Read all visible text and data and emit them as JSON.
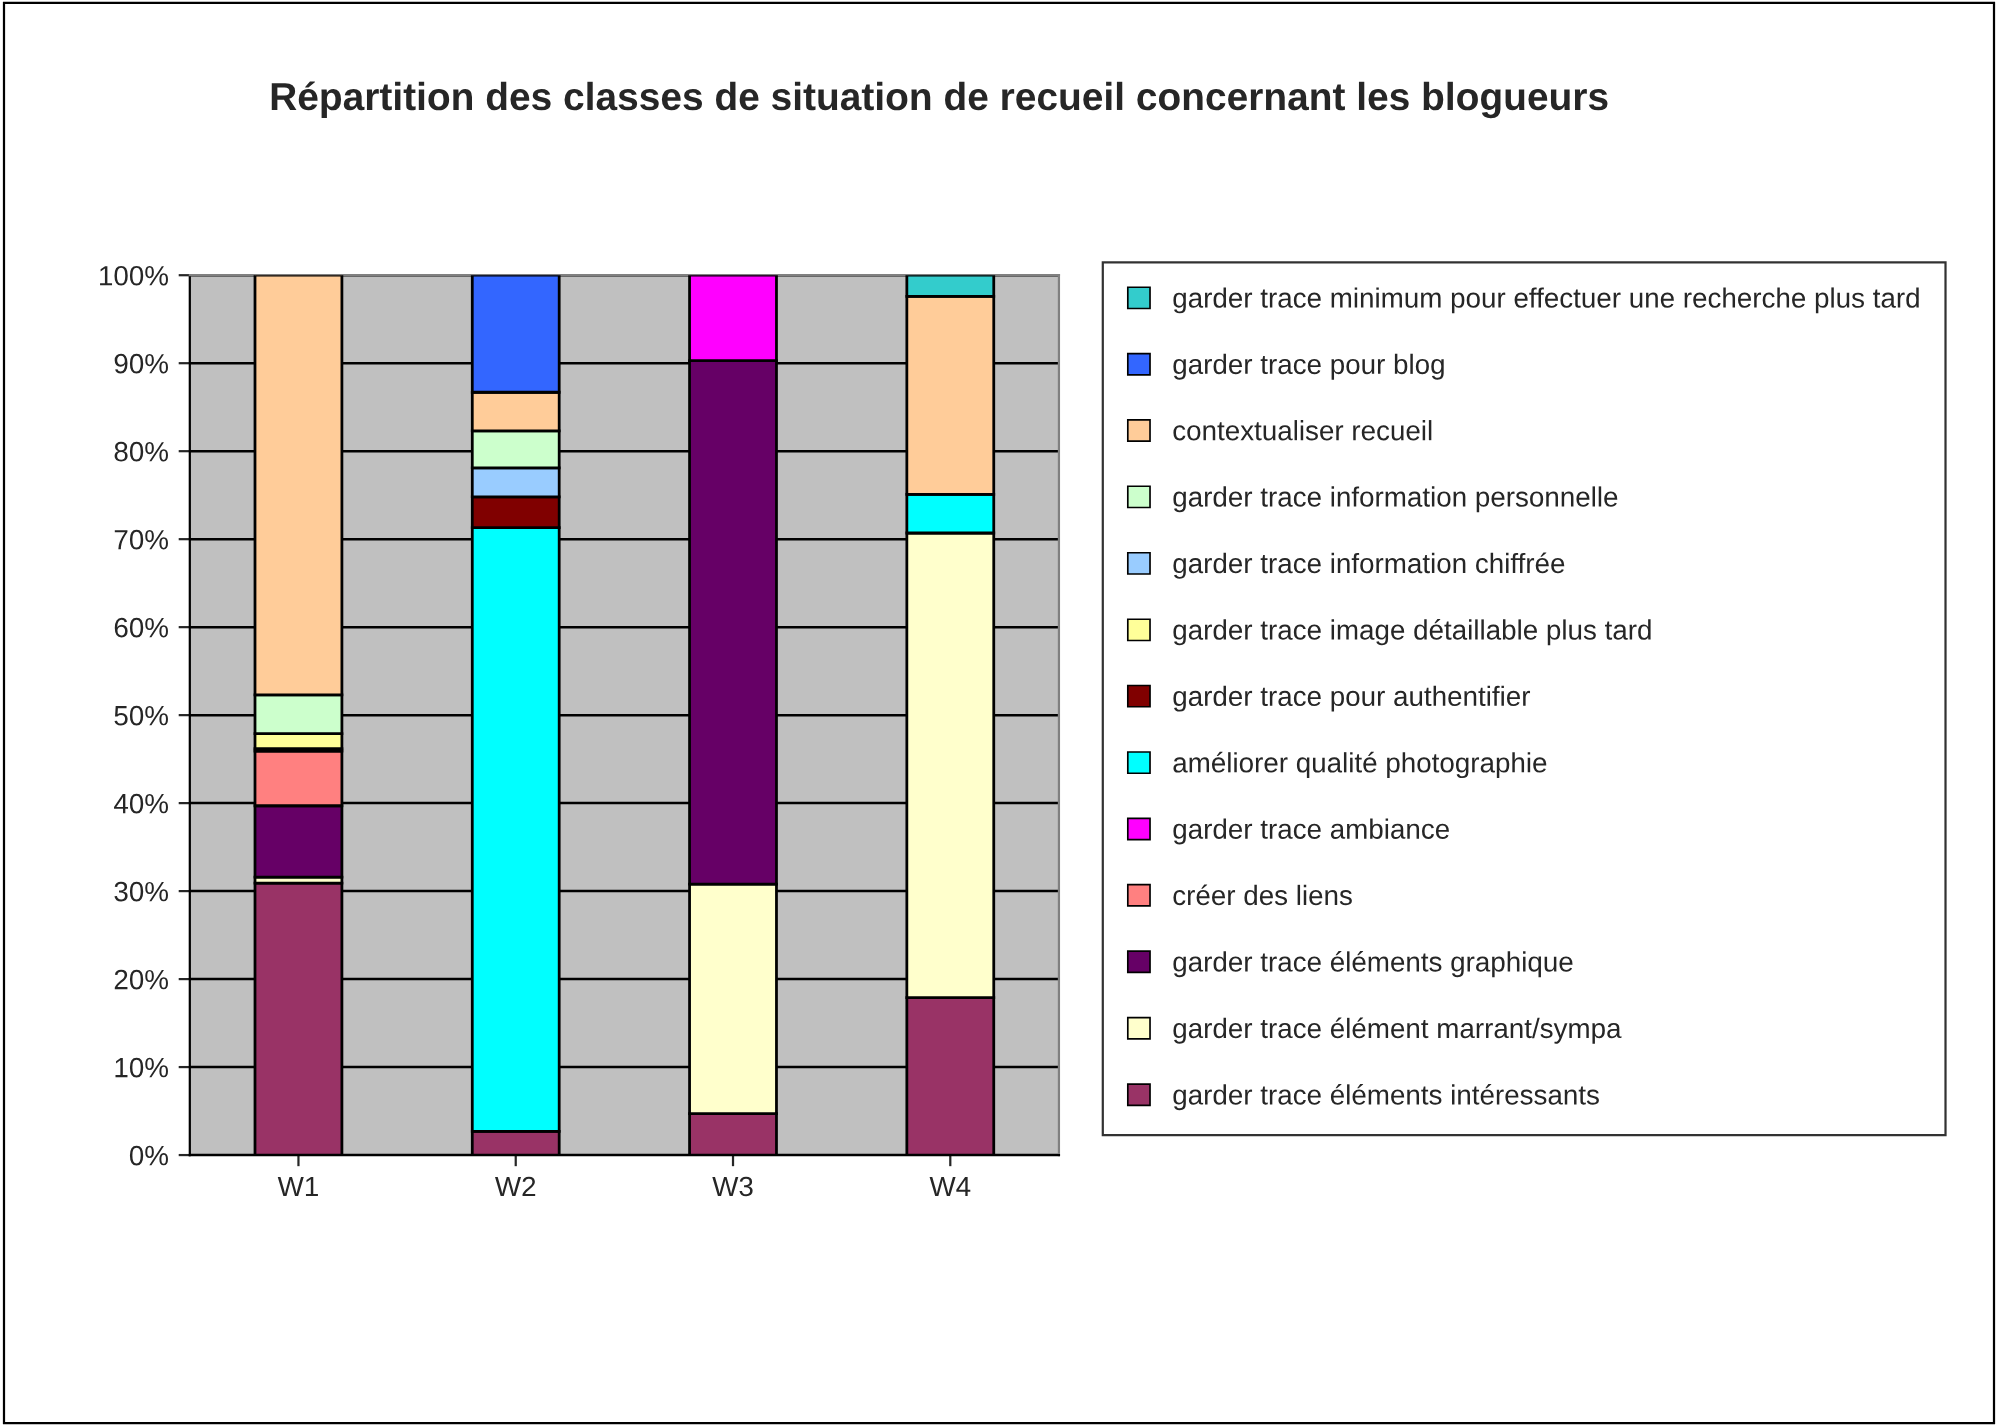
{
  "chart_data": {
    "type": "bar",
    "stacked": true,
    "title": "Répartition des classes de situation de recueil concernant les blogueurs",
    "categories": [
      "W1",
      "W2",
      "W3",
      "W4"
    ],
    "series": [
      {
        "name": "garder trace éléments intéressants",
        "color": "#993366",
        "values": [
          30.9,
          2.7,
          4.7,
          17.9
        ]
      },
      {
        "name": "garder trace élément marrant/sympa",
        "color": "#ffffcc",
        "values": [
          0.7,
          0,
          26.1,
          52.8
        ]
      },
      {
        "name": "garder trace éléments graphique",
        "color": "#660066",
        "values": [
          8.1,
          0,
          59.5,
          0
        ]
      },
      {
        "name": "créer des liens",
        "color": "#ff8080",
        "values": [
          6.2,
          0,
          0,
          0
        ]
      },
      {
        "name": "garder trace ambiance",
        "color": "#ff00ff",
        "values": [
          0,
          0,
          9.7,
          0
        ]
      },
      {
        "name": "améliorer qualité photographie",
        "color": "#00ffff",
        "values": [
          0,
          68.6,
          0,
          4.4
        ]
      },
      {
        "name": "garder trace pour authentifier",
        "color": "#800000",
        "values": [
          0.3,
          3.5,
          0,
          0
        ]
      },
      {
        "name": "garder trace image détaillable plus tard",
        "color": "#ffff99",
        "values": [
          1.7,
          0,
          0,
          0
        ]
      },
      {
        "name": "garder trace information chiffrée",
        "color": "#99ccff",
        "values": [
          0,
          3.3,
          0,
          0
        ]
      },
      {
        "name": "garder trace information personnelle",
        "color": "#ccffcc",
        "values": [
          4.4,
          4.2,
          0,
          0
        ]
      },
      {
        "name": "contextualiser recueil",
        "color": "#ffcc99",
        "values": [
          47.7,
          4.4,
          0,
          22.5
        ]
      },
      {
        "name": "garder trace pour blog",
        "color": "#3366ff",
        "values": [
          0,
          13.3,
          0,
          0
        ]
      },
      {
        "name": "garder trace minimum pour effectuer une recherche plus tard",
        "color": "#33cccc",
        "values": [
          0,
          0,
          0,
          2.4
        ]
      }
    ],
    "ylim": [
      0,
      100
    ],
    "yticks": [
      {
        "value": 0,
        "label": "0%"
      },
      {
        "value": 10,
        "label": "10%"
      },
      {
        "value": 20,
        "label": "20%"
      },
      {
        "value": 30,
        "label": "30%"
      },
      {
        "value": 40,
        "label": "40%"
      },
      {
        "value": 50,
        "label": "50%"
      },
      {
        "value": 60,
        "label": "60%"
      },
      {
        "value": 70,
        "label": "70%"
      },
      {
        "value": 80,
        "label": "80%"
      },
      {
        "value": 90,
        "label": "90%"
      },
      {
        "value": 100,
        "label": "100%"
      }
    ],
    "grid": "y",
    "legend": "right"
  }
}
